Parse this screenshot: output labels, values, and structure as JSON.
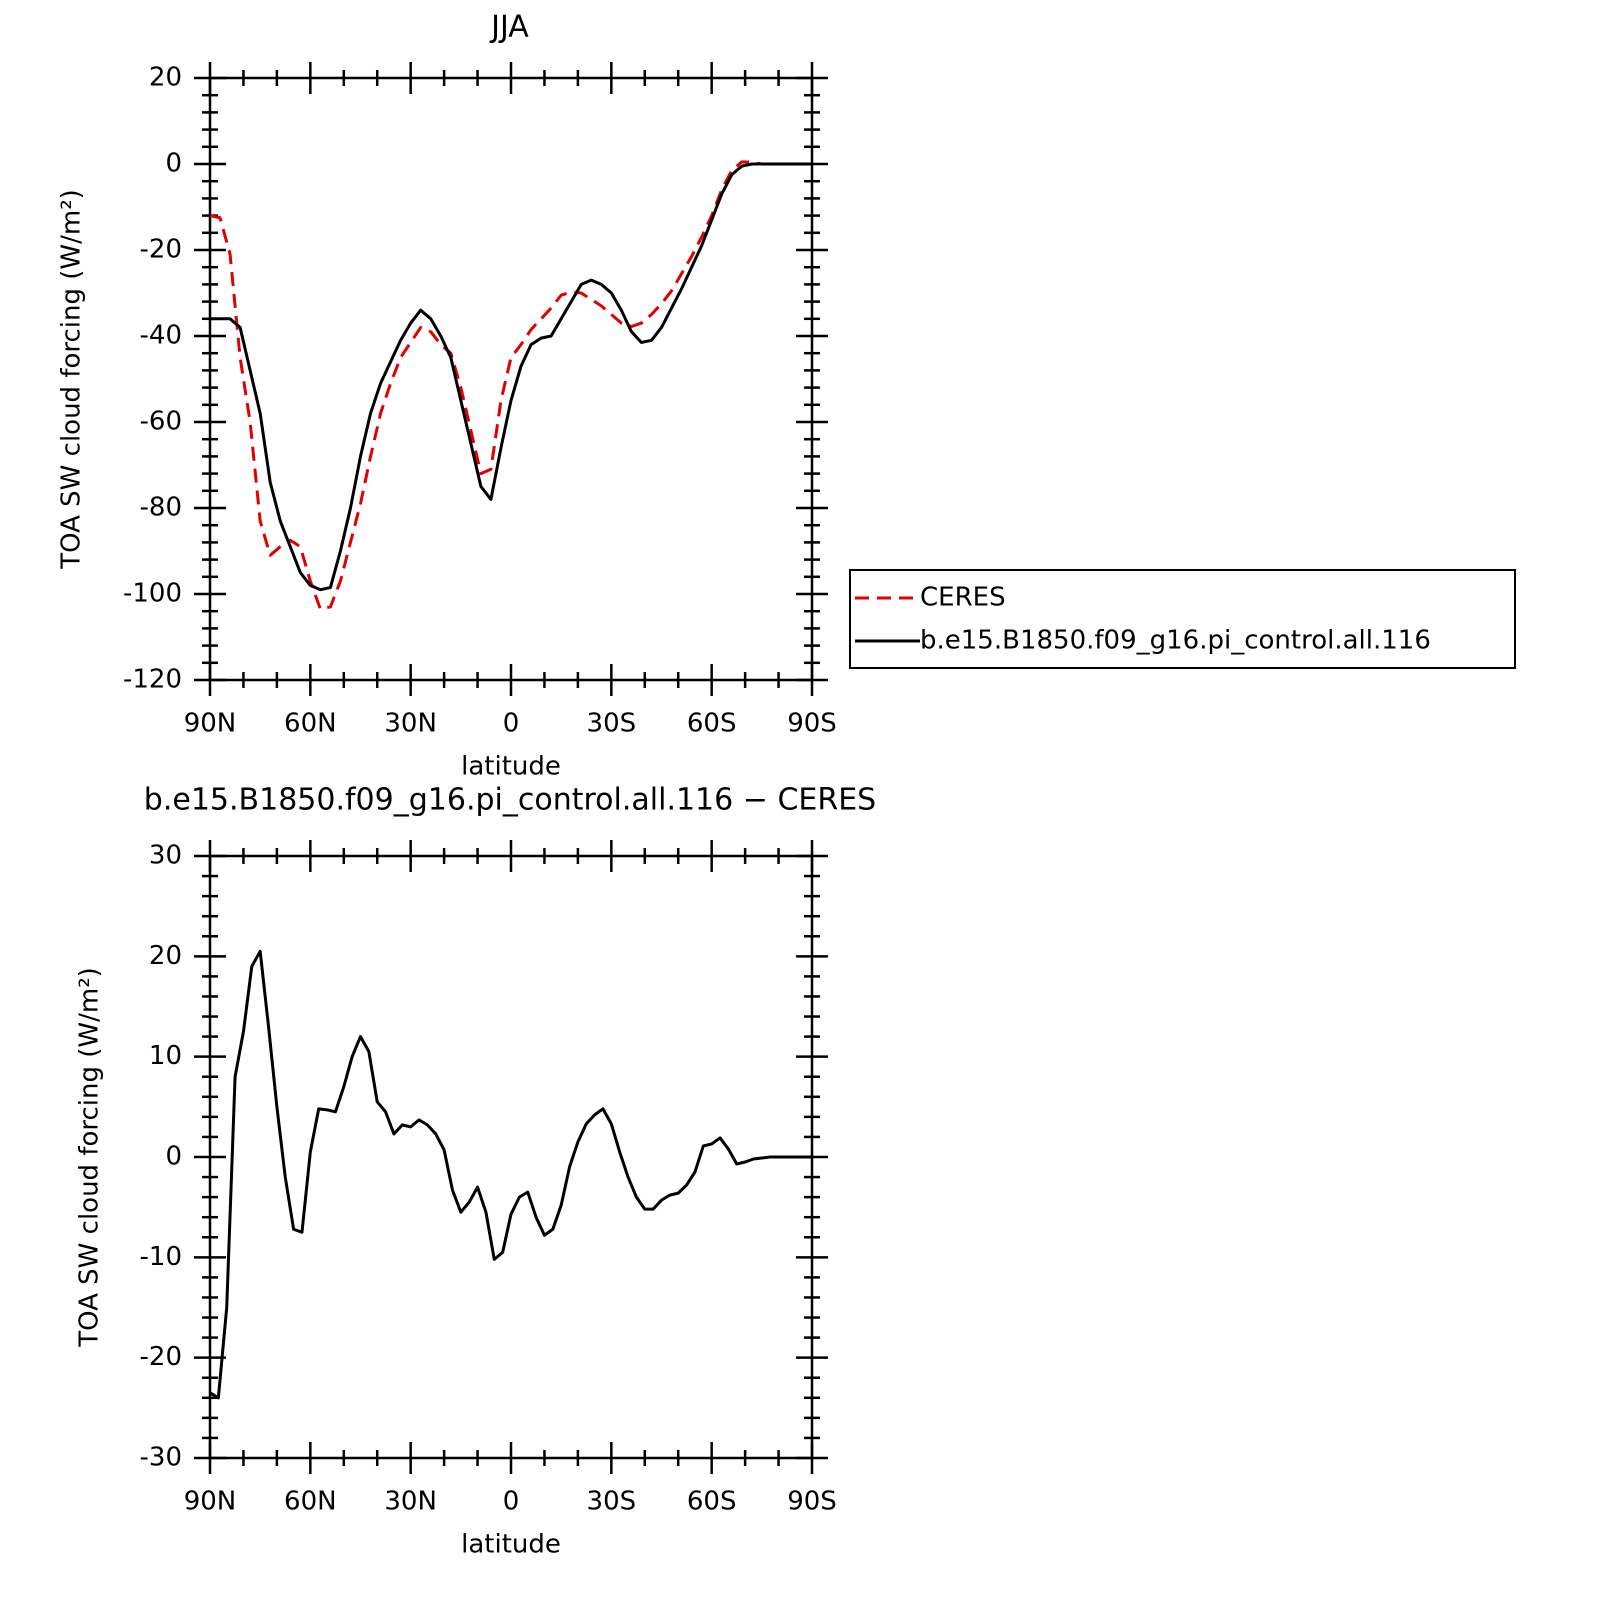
{
  "chart_data": [
    {
      "type": "line",
      "title": "JJA",
      "xlabel": "latitude",
      "ylabel": "TOA SW cloud forcing (W/m²)",
      "x": [
        90,
        87,
        84,
        81,
        78,
        75,
        72,
        69,
        66,
        63,
        60,
        57,
        54,
        51,
        48,
        45,
        42,
        39,
        36,
        33,
        30,
        27,
        24,
        21,
        18,
        15,
        12,
        9,
        6,
        3,
        0,
        -3,
        -6,
        -9,
        -12,
        -15,
        -18,
        -21,
        -24,
        -27,
        -30,
        -33,
        -36,
        -39,
        -42,
        -45,
        -48,
        -51,
        -54,
        -57,
        -60,
        -63,
        -66,
        -69,
        -72,
        -75,
        -78,
        -81,
        -84,
        -87,
        -90
      ],
      "series": [
        {
          "name": "CERES",
          "color": "#e00000",
          "dashed": true,
          "values": [
            -12,
            -12.5,
            -21,
            -45,
            -60,
            -83,
            -91,
            -89,
            -87.5,
            -89,
            -97,
            -103.5,
            -103,
            -97,
            -88,
            -79,
            -68,
            -58,
            -51,
            -45,
            -41.5,
            -38,
            -39,
            -42,
            -44,
            -52,
            -62,
            -72,
            -71,
            -55,
            -45,
            -42,
            -38.5,
            -36,
            -33.5,
            -30.5,
            -29.8,
            -30,
            -31.5,
            -33,
            -35,
            -37,
            -37.8,
            -37,
            -35,
            -32.5,
            -29.5,
            -25.5,
            -21.5,
            -17,
            -12,
            -6,
            -1.5,
            0.5,
            0.4,
            0,
            0,
            0,
            0,
            0,
            0
          ]
        },
        {
          "name": "b.e15.B1850.f09_g16.pi_control.all.116",
          "color": "#000000",
          "dashed": false,
          "values": [
            -36,
            -36,
            -36,
            -38,
            -48,
            -58,
            -74,
            -83,
            -89,
            -95,
            -98,
            -99,
            -98.5,
            -90,
            -80,
            -68,
            -58,
            -51,
            -46,
            -41,
            -37,
            -34,
            -36,
            -40,
            -45,
            -55,
            -65,
            -75,
            -78,
            -66,
            -55,
            -47,
            -42,
            -40.5,
            -40,
            -36,
            -32,
            -28,
            -27,
            -28,
            -30,
            -34,
            -39,
            -41.5,
            -41,
            -38,
            -33.5,
            -29,
            -24,
            -19,
            -13,
            -7,
            -2.5,
            -0.5,
            0,
            0,
            0,
            0,
            0,
            0,
            0
          ]
        }
      ],
      "xlim": [
        90,
        -90
      ],
      "xticks": [
        {
          "value": 90,
          "label": "90N"
        },
        {
          "value": 60,
          "label": "60N"
        },
        {
          "value": 30,
          "label": "30N"
        },
        0,
        {
          "value": -30,
          "label": "30S"
        },
        {
          "value": -60,
          "label": "60S"
        },
        {
          "value": -90,
          "label": "90S"
        }
      ],
      "ylim": [
        -120,
        20
      ],
      "yticks": [
        -120,
        -100,
        -80,
        -60,
        -40,
        -20,
        0,
        20
      ],
      "legend": "right"
    },
    {
      "type": "line",
      "title": "b.e15.B1850.f09_g16.pi_control.all.116 − CERES",
      "xlabel": "latitude",
      "ylabel": "TOA SW cloud forcing (W/m²)",
      "x": [
        90,
        87.5,
        85,
        82.5,
        80,
        77.5,
        75,
        72.5,
        70,
        67.5,
        65,
        62.5,
        60,
        57.5,
        55,
        52.5,
        50,
        47.5,
        45,
        42.5,
        40,
        37.5,
        35,
        32.5,
        30,
        27.5,
        25,
        22.5,
        20,
        17.5,
        15,
        12.5,
        10,
        7.5,
        5,
        2.5,
        0,
        -2.5,
        -5,
        -7.5,
        -10,
        -12.5,
        -15,
        -17.5,
        -20,
        -22.5,
        -25,
        -27.5,
        -30,
        -32.5,
        -35,
        -37.5,
        -40,
        -42.5,
        -45,
        -47.5,
        -50,
        -52.5,
        -55,
        -57.5,
        -60,
        -62.5,
        -65,
        -67.5,
        -70,
        -72.5,
        -75,
        -77.5,
        -80,
        -82.5,
        -85,
        -87.5,
        -90
      ],
      "series": [
        {
          "color": "#000000",
          "dashed": false,
          "values": [
            -23.5,
            -24,
            -15,
            8,
            12.5,
            19,
            20.5,
            13,
            5,
            -2,
            -7.2,
            -7.5,
            0.5,
            4.8,
            4.7,
            4.5,
            7,
            10,
            12,
            10.5,
            5.5,
            4.5,
            2.3,
            3.2,
            3,
            3.7,
            3.2,
            2.3,
            0.7,
            -3.3,
            -5.5,
            -4.5,
            -3,
            -5.5,
            -10.2,
            -9.5,
            -5.7,
            -4,
            -3.5,
            -6,
            -7.8,
            -7.2,
            -4.8,
            -1,
            1.5,
            3.3,
            4.2,
            4.8,
            3.3,
            0.5,
            -2,
            -4,
            -5.2,
            -5.2,
            -4.3,
            -3.8,
            -3.6,
            -2.8,
            -1.5,
            1.1,
            1.3,
            1.9,
            0.8,
            -0.7,
            -0.5,
            -0.2,
            -0.1,
            0,
            0,
            0,
            0,
            0,
            0
          ]
        }
      ],
      "xlim": [
        90,
        -90
      ],
      "xticks": [
        {
          "value": 90,
          "label": "90N"
        },
        {
          "value": 60,
          "label": "60N"
        },
        {
          "value": 30,
          "label": "30N"
        },
        0,
        {
          "value": -30,
          "label": "30S"
        },
        {
          "value": -60,
          "label": "60S"
        },
        {
          "value": -90,
          "label": "90S"
        }
      ],
      "ylim": [
        -30,
        30
      ],
      "yticks": [
        -30,
        -20,
        -10,
        0,
        10,
        20,
        30
      ]
    }
  ]
}
